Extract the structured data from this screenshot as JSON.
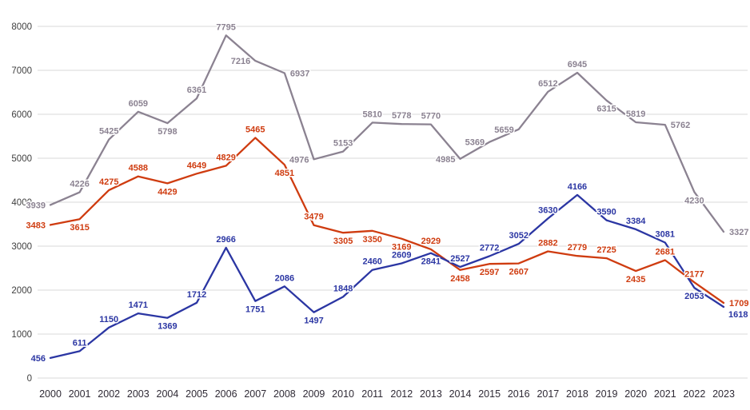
{
  "chart_data": {
    "type": "line",
    "title": "",
    "xlabel": "",
    "ylabel": "",
    "categories": [
      "2000",
      "2001",
      "2002",
      "2003",
      "2004",
      "2005",
      "2006",
      "2007",
      "2008",
      "2009",
      "2010",
      "2011",
      "2012",
      "2013",
      "2014",
      "2015",
      "2016",
      "2017",
      "2018",
      "2019",
      "2020",
      "2021",
      "2022",
      "2023"
    ],
    "series": [
      {
        "id": "gray",
        "color": "#8b8291",
        "values": [
          3939,
          4226,
          5425,
          6059,
          5798,
          6361,
          7795,
          7216,
          6937,
          4976,
          5153,
          5810,
          5778,
          5770,
          4985,
          5369,
          5659,
          6512,
          6945,
          6315,
          5819,
          5762,
          4230,
          3327
        ]
      },
      {
        "id": "orange",
        "color": "#cf3c10",
        "values": [
          3483,
          3615,
          4275,
          4588,
          4429,
          4649,
          4829,
          5465,
          4851,
          3479,
          3305,
          3350,
          3169,
          2929,
          2458,
          2597,
          2607,
          2882,
          2779,
          2725,
          2435,
          2681,
          2177,
          1709
        ]
      },
      {
        "id": "blue",
        "color": "#2b36a3",
        "values": [
          456,
          611,
          1150,
          1471,
          1369,
          1712,
          2966,
          1751,
          2086,
          1497,
          1848,
          2460,
          2609,
          2841,
          2527,
          2772,
          3052,
          3630,
          4166,
          3590,
          3384,
          3081,
          2053,
          1618
        ]
      }
    ],
    "ylim": [
      0,
      8000
    ],
    "ytick_interval": 1000,
    "ytick_labels": [
      "0",
      "1000",
      "2000",
      "3000",
      "4000",
      "5000",
      "6000",
      "7000",
      "8000"
    ],
    "grid": "horizontal",
    "legend": "none",
    "data_labels": "all-points",
    "colors": {
      "gridline": "#d9d9d9",
      "y_axis_text": "#3f3f3f",
      "x_axis_text": "#2f2a35",
      "background": "#ffffff"
    }
  }
}
